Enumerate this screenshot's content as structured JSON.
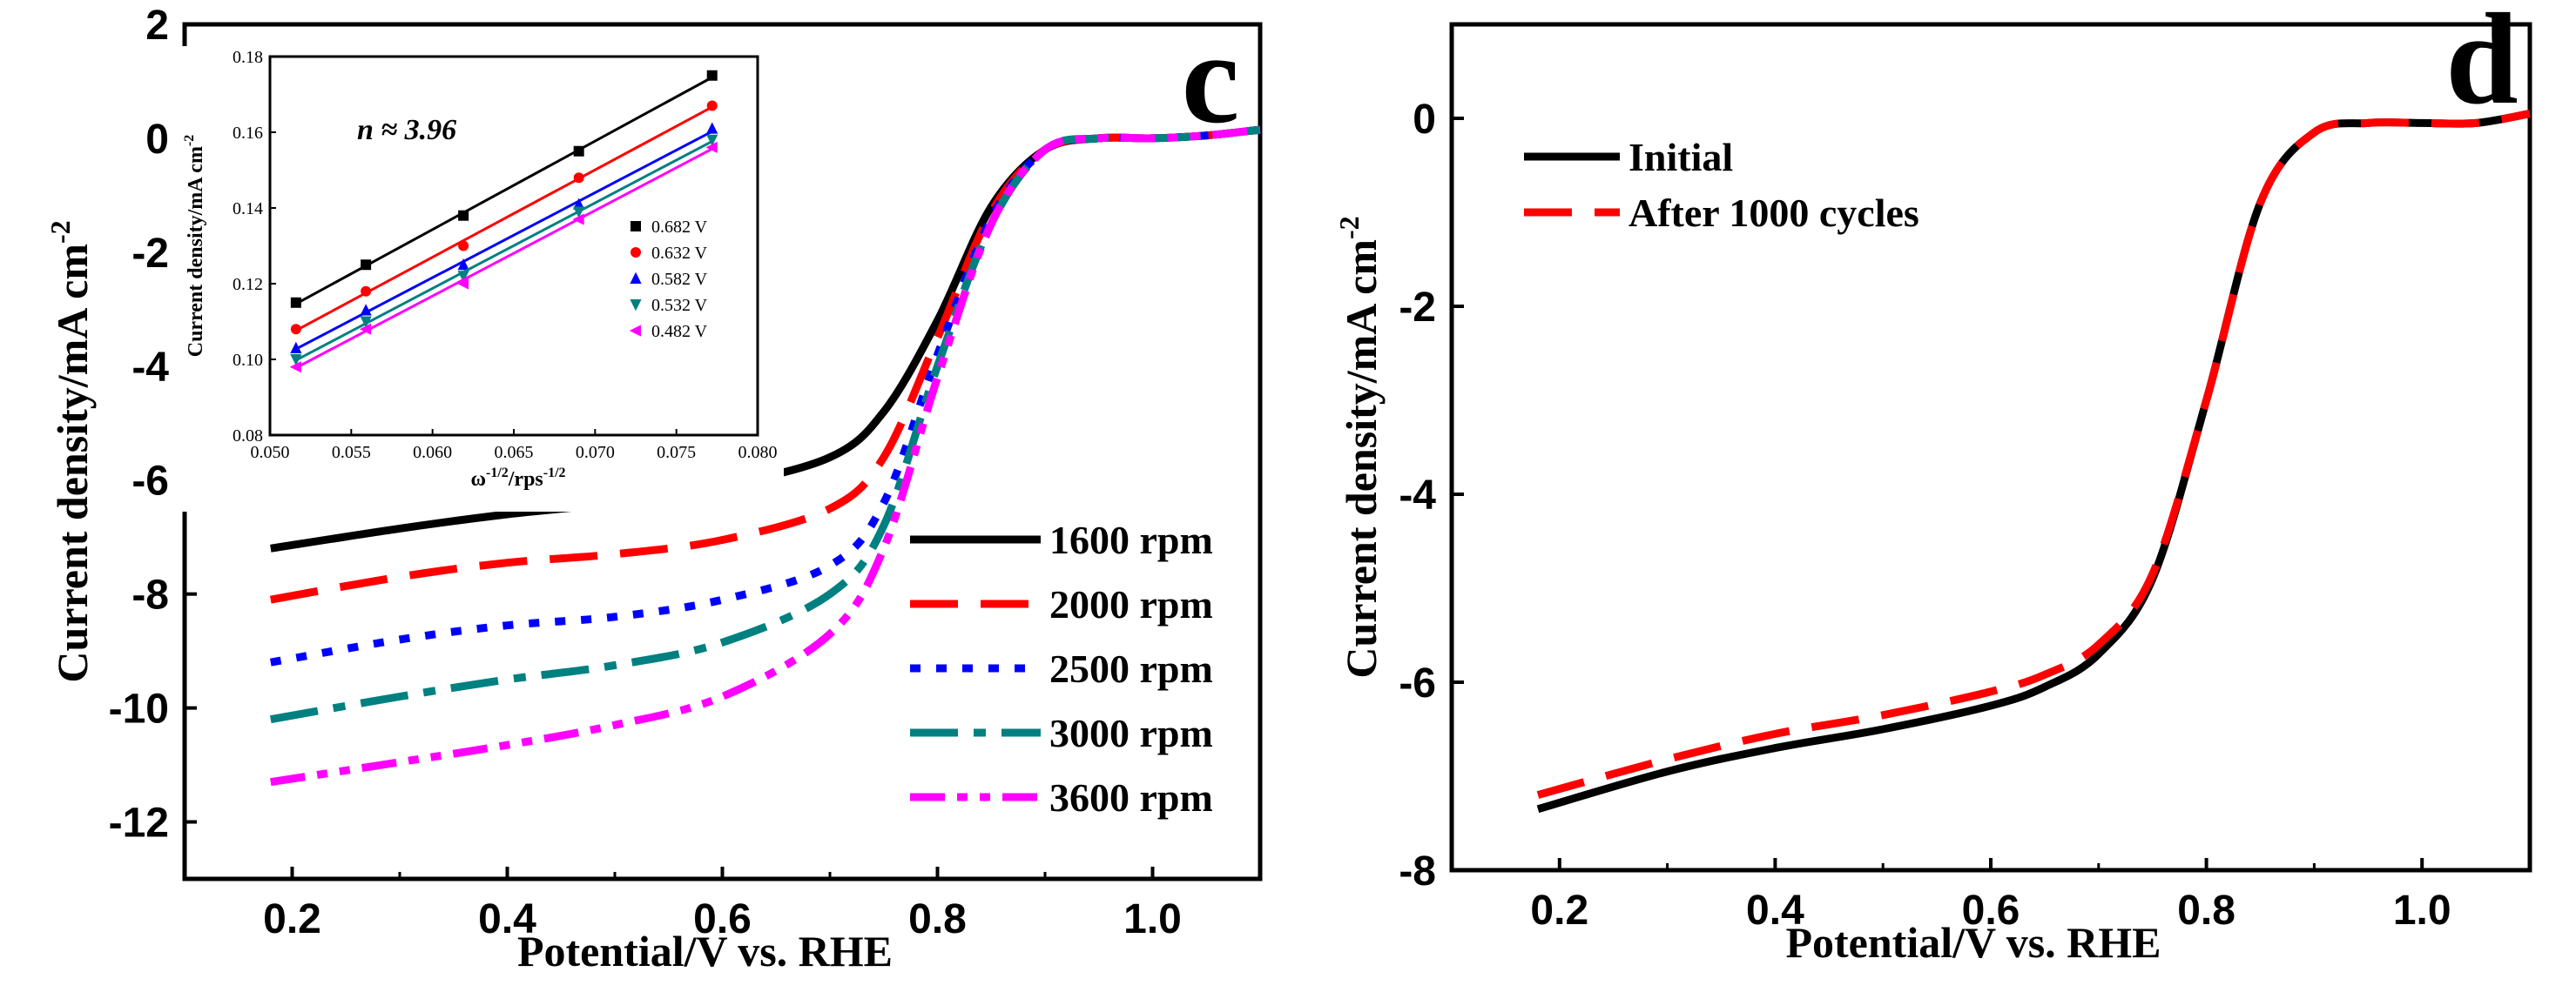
{
  "chart_data": [
    {
      "id": "c",
      "type": "line",
      "panel_label": "c",
      "xlabel": "Potential/V vs. RHE",
      "ylabel": "Current density/mA cm",
      "ylabel_sup": "-2",
      "xlim": [
        0.1,
        1.1
      ],
      "ylim": [
        -13,
        2
      ],
      "xticks": [
        0.2,
        0.4,
        0.6,
        0.8,
        1.0
      ],
      "xtick_labels": [
        "0.2",
        "0.4",
        "0.6",
        "0.8",
        "1.0"
      ],
      "yticks": [
        2,
        0,
        -2,
        -4,
        -6,
        -8,
        -10,
        -12
      ],
      "ytick_labels": [
        "2",
        "0",
        "-2",
        "-4",
        "-6",
        "-8",
        "-10",
        "-12"
      ],
      "legend_position": "lower-right",
      "series": [
        {
          "name": "1600 rpm",
          "color": "#000000",
          "dash": "solid",
          "x": [
            0.18,
            0.3,
            0.4,
            0.5,
            0.6,
            0.7,
            0.75,
            0.8,
            0.85,
            0.9,
            0.95,
            1.0,
            1.05,
            1.1
          ],
          "y": [
            -7.2,
            -6.85,
            -6.6,
            -6.4,
            -6.1,
            -5.6,
            -4.8,
            -3.2,
            -1.2,
            -0.2,
            0.0,
            0.0,
            0.05,
            0.15
          ]
        },
        {
          "name": "2000 rpm",
          "color": "#ff0000",
          "dash": "long",
          "x": [
            0.18,
            0.3,
            0.4,
            0.5,
            0.6,
            0.7,
            0.75,
            0.8,
            0.85,
            0.9,
            0.95,
            1.0,
            1.05,
            1.1
          ],
          "y": [
            -8.1,
            -7.7,
            -7.45,
            -7.3,
            -7.05,
            -6.5,
            -5.6,
            -3.5,
            -1.3,
            -0.2,
            0.0,
            0.0,
            0.05,
            0.15
          ]
        },
        {
          "name": "2500 rpm",
          "color": "#0000ff",
          "dash": "dot",
          "x": [
            0.18,
            0.3,
            0.4,
            0.5,
            0.6,
            0.7,
            0.75,
            0.8,
            0.85,
            0.9,
            0.95,
            1.0,
            1.05,
            1.1
          ],
          "y": [
            -9.2,
            -8.8,
            -8.55,
            -8.4,
            -8.1,
            -7.5,
            -6.4,
            -3.8,
            -1.4,
            -0.2,
            0.0,
            0.0,
            0.05,
            0.15
          ]
        },
        {
          "name": "3000 rpm",
          "color": "#008080",
          "dash": "dashdot",
          "x": [
            0.18,
            0.3,
            0.4,
            0.5,
            0.6,
            0.7,
            0.75,
            0.8,
            0.85,
            0.9,
            0.95,
            1.0,
            1.05,
            1.1
          ],
          "y": [
            -10.2,
            -9.8,
            -9.5,
            -9.25,
            -8.85,
            -8.0,
            -6.8,
            -4.0,
            -1.5,
            -0.2,
            0.0,
            0.0,
            0.05,
            0.15
          ]
        },
        {
          "name": "3600 rpm",
          "color": "#ff00ff",
          "dash": "dashdotdot",
          "x": [
            0.18,
            0.3,
            0.4,
            0.5,
            0.6,
            0.7,
            0.75,
            0.8,
            0.85,
            0.9,
            0.95,
            1.0,
            1.05,
            1.1
          ],
          "y": [
            -11.3,
            -10.95,
            -10.65,
            -10.3,
            -9.8,
            -8.7,
            -7.2,
            -4.2,
            -1.5,
            -0.2,
            0.0,
            0.0,
            0.05,
            0.15
          ]
        }
      ]
    },
    {
      "id": "c-inset",
      "type": "scatter",
      "xlabel": "ω",
      "xlabel_sup": "-1/2",
      "xlabel_mid": "/rps",
      "xlabel_sup2": "-1/2",
      "ylabel": "Current density/mA cm",
      "ylabel_sup": "-2",
      "annotation": "n ≈ 3.96",
      "xlim": [
        0.05,
        0.08
      ],
      "ylim": [
        0.08,
        0.18
      ],
      "xticks": [
        0.05,
        0.055,
        0.06,
        0.065,
        0.07,
        0.075,
        0.08
      ],
      "xtick_labels": [
        "0.050",
        "0.055",
        "0.060",
        "0.065",
        "0.070",
        "0.075",
        "0.080"
      ],
      "yticks": [
        0.08,
        0.1,
        0.12,
        0.14,
        0.16,
        0.18
      ],
      "ytick_labels": [
        "0.08",
        "0.10",
        "0.12",
        "0.14",
        "0.16",
        "0.18"
      ],
      "legend_position": "right",
      "series": [
        {
          "name": "0.682 V",
          "color": "#000000",
          "marker": "square",
          "x": [
            0.0516,
            0.0559,
            0.0619,
            0.069,
            0.0772
          ],
          "y": [
            0.115,
            0.125,
            0.138,
            0.155,
            0.175
          ]
        },
        {
          "name": "0.632 V",
          "color": "#ff0000",
          "marker": "circle",
          "x": [
            0.0516,
            0.0559,
            0.0619,
            0.069,
            0.0772
          ],
          "y": [
            0.108,
            0.118,
            0.13,
            0.148,
            0.167
          ]
        },
        {
          "name": "0.582 V",
          "color": "#0000ff",
          "marker": "triangle-up",
          "x": [
            0.0516,
            0.0559,
            0.0619,
            0.069,
            0.0772
          ],
          "y": [
            0.103,
            0.113,
            0.125,
            0.141,
            0.161
          ]
        },
        {
          "name": "0.532 V",
          "color": "#008080",
          "marker": "triangle-down",
          "x": [
            0.0516,
            0.0559,
            0.0619,
            0.069,
            0.0772
          ],
          "y": [
            0.1,
            0.11,
            0.122,
            0.139,
            0.158
          ]
        },
        {
          "name": "0.482 V",
          "color": "#ff00ff",
          "marker": "triangle-left",
          "x": [
            0.0516,
            0.0559,
            0.0619,
            0.069,
            0.0772
          ],
          "y": [
            0.098,
            0.108,
            0.12,
            0.137,
            0.156
          ]
        }
      ]
    },
    {
      "id": "d",
      "type": "line",
      "panel_label": "d",
      "xlabel": "Potential/V vs. RHE",
      "ylabel": "Current density/mA cm",
      "ylabel_sup": "-2",
      "xlim": [
        0.1,
        1.1
      ],
      "ylim": [
        -8,
        1
      ],
      "xticks": [
        0.2,
        0.4,
        0.6,
        0.8,
        1.0
      ],
      "xtick_labels": [
        "0.2",
        "0.4",
        "0.6",
        "0.8",
        "1.0"
      ],
      "yticks": [
        0,
        -2,
        -4,
        -6,
        -8
      ],
      "ytick_labels": [
        "0",
        "-2",
        "-4",
        "-6",
        "-8"
      ],
      "legend_position": "top-left",
      "series": [
        {
          "name": "Initial",
          "color": "#000000",
          "dash": "solid",
          "x": [
            0.18,
            0.3,
            0.4,
            0.5,
            0.6,
            0.65,
            0.7,
            0.75,
            0.8,
            0.85,
            0.9,
            0.95,
            1.0,
            1.05,
            1.1
          ],
          "y": [
            -7.35,
            -6.95,
            -6.7,
            -6.5,
            -6.25,
            -6.05,
            -5.7,
            -4.9,
            -3.0,
            -0.9,
            -0.15,
            -0.05,
            -0.05,
            -0.05,
            0.05
          ]
        },
        {
          "name": "After 1000 cycles",
          "color": "#ff0000",
          "dash": "long",
          "x": [
            0.18,
            0.3,
            0.4,
            0.5,
            0.6,
            0.65,
            0.7,
            0.75,
            0.8,
            0.85,
            0.9,
            0.95,
            1.0,
            1.05,
            1.1
          ],
          "y": [
            -7.2,
            -6.82,
            -6.55,
            -6.35,
            -6.1,
            -5.92,
            -5.6,
            -4.85,
            -3.0,
            -0.9,
            -0.15,
            -0.05,
            -0.05,
            -0.05,
            0.05
          ]
        }
      ]
    }
  ]
}
